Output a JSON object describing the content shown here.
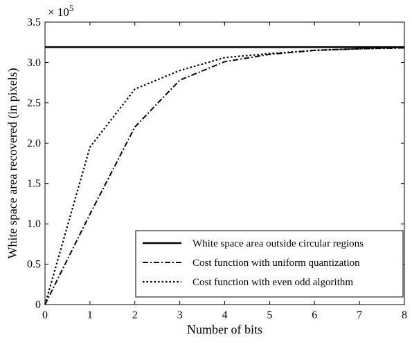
{
  "chart_data": {
    "type": "line",
    "xlabel": "Number of bits",
    "ylabel": "White space area recovered (in pixels)",
    "y_multiplier": {
      "base": "× 10",
      "exponent": "5"
    },
    "xlim": [
      0,
      8
    ],
    "ylim": [
      0,
      3.5
    ],
    "x_ticks": [
      "0",
      "1",
      "2",
      "3",
      "4",
      "5",
      "6",
      "7",
      "8"
    ],
    "y_ticks": [
      "0",
      "0.5",
      "1.0",
      "1.5",
      "2.0",
      "2.5",
      "3.0",
      "3.5"
    ],
    "grid": false,
    "legend_position": "bottom-right",
    "series": [
      {
        "name": "White space area outside circular regions",
        "style": "solid",
        "x": [
          0,
          8
        ],
        "y": [
          3.19,
          3.19
        ]
      },
      {
        "name": "Cost function with uniform quantization",
        "style": "dashdot",
        "x": [
          0,
          1,
          2,
          3,
          4,
          5,
          6,
          7,
          8
        ],
        "y": [
          0,
          1.12,
          2.2,
          2.78,
          3.01,
          3.1,
          3.15,
          3.17,
          3.18
        ]
      },
      {
        "name": "Cost function with even odd algorithm",
        "style": "dotted",
        "x": [
          0,
          1,
          2,
          3,
          4,
          5,
          6,
          7,
          8
        ],
        "y": [
          0,
          1.95,
          2.67,
          2.9,
          3.06,
          3.11,
          3.15,
          3.17,
          3.18
        ]
      }
    ]
  }
}
